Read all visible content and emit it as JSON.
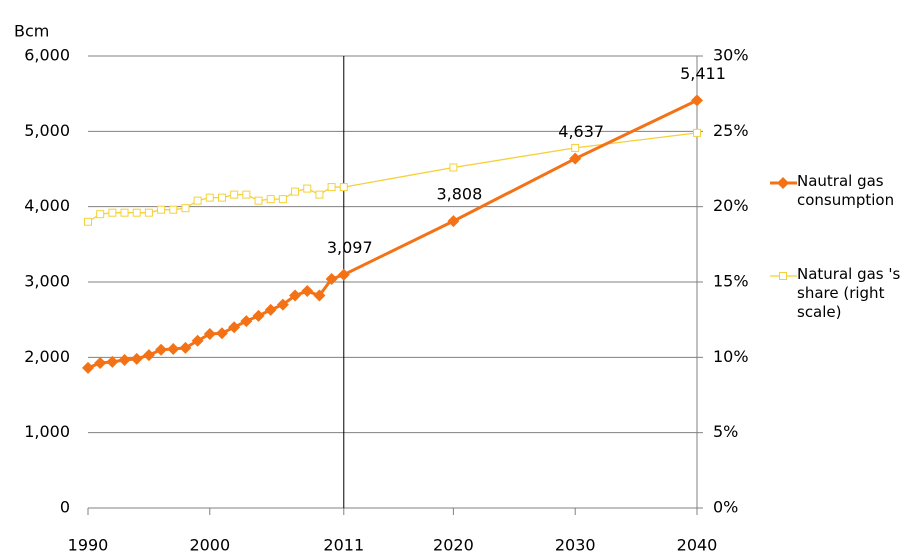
{
  "chart_data": {
    "type": "line",
    "y_label": "Bcm",
    "x": [
      1990,
      1991,
      1992,
      1993,
      1994,
      1995,
      1996,
      1997,
      1998,
      1999,
      2000,
      2001,
      2002,
      2003,
      2004,
      2005,
      2006,
      2007,
      2008,
      2009,
      2010,
      2011,
      2020,
      2030,
      2040
    ],
    "series": [
      {
        "name": "Nautral gas consumption",
        "color": "#f47216",
        "marker": "diamond",
        "values": [
          1860,
          1925,
          1940,
          1965,
          1980,
          2030,
          2100,
          2110,
          2125,
          2220,
          2310,
          2320,
          2400,
          2480,
          2550,
          2630,
          2700,
          2820,
          2880,
          2820,
          3040,
          3097,
          3808,
          4637,
          5411
        ],
        "value_labels": [
          null,
          null,
          null,
          null,
          null,
          null,
          null,
          null,
          null,
          null,
          null,
          null,
          null,
          null,
          null,
          null,
          null,
          null,
          null,
          null,
          null,
          "3,097",
          "3,808",
          "4,637",
          "5,411"
        ]
      },
      {
        "name": "Natural gas 's share (right scale)",
        "color": "#f5d038",
        "marker": "square",
        "axis": "y2",
        "values": [
          19.0,
          19.5,
          19.6,
          19.6,
          19.6,
          19.6,
          19.8,
          19.8,
          19.9,
          20.4,
          20.6,
          20.6,
          20.8,
          20.8,
          20.4,
          20.5,
          20.5,
          21.0,
          21.2,
          20.8,
          21.3,
          21.3,
          22.6,
          23.9,
          24.9
        ]
      }
    ],
    "xlim": [
      1990,
      2040
    ],
    "xticks": [
      1990,
      2000,
      2011,
      2020,
      2030,
      2040
    ],
    "vline": 2011,
    "ylim": [
      0,
      6000
    ],
    "yticks": [
      0,
      {
        "value": 1000,
        "label": "1,000"
      },
      {
        "value": 2000,
        "label": "2,000"
      },
      {
        "value": 3000,
        "label": "3,000"
      },
      {
        "value": 4000,
        "label": "4,000"
      },
      {
        "value": 5000,
        "label": "5,000"
      },
      {
        "value": 6000,
        "label": "6,000"
      }
    ],
    "y2lim": [
      0,
      30
    ],
    "y2ticks": [
      {
        "value": 0,
        "label": "0%"
      },
      {
        "value": 5,
        "label": "5%"
      },
      {
        "value": 10,
        "label": "10%"
      },
      {
        "value": 15,
        "label": "15%"
      },
      {
        "value": 20,
        "label": "20%"
      },
      {
        "value": 25,
        "label": "25%"
      },
      {
        "value": 30,
        "label": "30%"
      }
    ],
    "grid": true,
    "legend": "right"
  }
}
